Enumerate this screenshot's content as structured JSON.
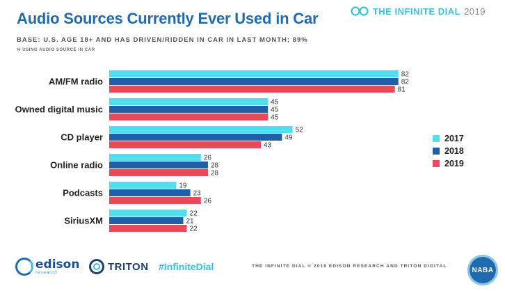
{
  "header": {
    "title": "Audio Sources Currently Ever Used in Car",
    "subtitle": "BASE: U.S. AGE 18+ AND HAS DRIVEN/RIDDEN IN CAR IN LAST MONTH; 89%",
    "note": "% USING AUDIO SOURCE IN CAR",
    "brand_name": "THE INFINITE DIAL",
    "brand_year": "2019"
  },
  "chart_data": {
    "type": "bar",
    "orientation": "horizontal",
    "categories": [
      "AM/FM radio",
      "Owned digital music",
      "CD player",
      "Online radio",
      "Podcasts",
      "SiriusXM"
    ],
    "series": [
      {
        "name": "2017",
        "values": [
          82,
          45,
          52,
          26,
          19,
          22
        ],
        "color": "#4fe0ef"
      },
      {
        "name": "2018",
        "values": [
          82,
          45,
          49,
          28,
          23,
          21
        ],
        "color": "#1f5fa6"
      },
      {
        "name": "2019",
        "values": [
          81,
          45,
          43,
          28,
          26,
          22
        ],
        "color": "#f0465a"
      }
    ],
    "xlim": [
      0,
      100
    ],
    "grid": false,
    "legend_position": "right"
  },
  "footer": {
    "edison_name": "edison",
    "edison_sub": "research",
    "triton": "TRITON",
    "hashtag": "#InfiniteDial",
    "copyright": "THE INFINITE DIAL  © 2019 EDISON RESEARCH AND TRITON DIGITAL",
    "naba": "NABA"
  }
}
